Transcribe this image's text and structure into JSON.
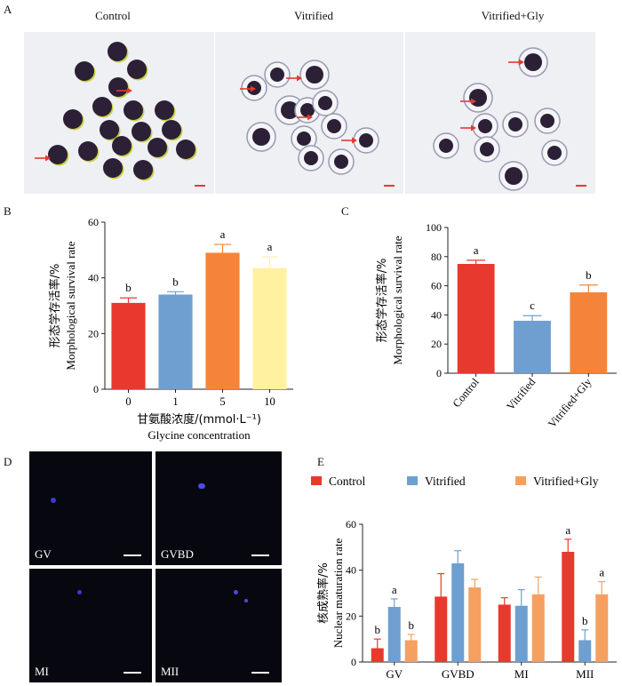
{
  "panels": {
    "A": {
      "letter": "A",
      "labels": [
        "Control",
        "Vitrified",
        "Vitrified+Gly"
      ],
      "colors": {
        "oocyte": "#2b2036",
        "rim": "#c8d23a",
        "bg": "#eef0f4",
        "arrow": "#e53a2f",
        "scale": "#e53a2f"
      }
    },
    "B": {
      "letter": "B"
    },
    "C": {
      "letter": "C"
    },
    "D": {
      "letter": "D",
      "labels": [
        "GV",
        "GVBD",
        "MI",
        "MII"
      ]
    },
    "E": {
      "letter": "E"
    }
  },
  "chart_data": [
    {
      "id": "B",
      "type": "bar",
      "categories": [
        "0",
        "1",
        "5",
        "10"
      ],
      "values": [
        31,
        34,
        49,
        43.5
      ],
      "errors": [
        1.8,
        1.0,
        3.0,
        4.0
      ],
      "sig": [
        "b",
        "b",
        "a",
        "a"
      ],
      "colors": [
        "#e8392e",
        "#6f9fd0",
        "#f5843a",
        "#fff1a0"
      ],
      "ylabel_cn": "形态学存活率/%",
      "ylabel_en": "Morphological survival rate",
      "xlabel_cn": "甘氨酸浓度/(mmol·L⁻¹)",
      "xlabel_en": "Glycine concentration",
      "ylim": [
        0,
        60
      ],
      "yticks": [
        0,
        20,
        40,
        60
      ]
    },
    {
      "id": "C",
      "type": "bar",
      "categories": [
        "Control",
        "Vitrified",
        "Vitrified+Gly"
      ],
      "values": [
        75,
        36,
        55.5
      ],
      "errors": [
        2.5,
        3.5,
        5.0
      ],
      "sig": [
        "a",
        "c",
        "b"
      ],
      "colors": [
        "#e8392e",
        "#6f9fd0",
        "#f5843a"
      ],
      "ylabel_cn": "形态学存活率/%",
      "ylabel_en": "Morphological survival rate",
      "ylim": [
        0,
        100
      ],
      "yticks": [
        0,
        20,
        40,
        60,
        80,
        100
      ]
    },
    {
      "id": "E",
      "type": "bar",
      "categories": [
        "GV",
        "GVBD",
        "MI",
        "MII"
      ],
      "series": [
        {
          "name": "Control",
          "color": "#e8392e",
          "values": [
            6,
            28.5,
            25,
            48
          ],
          "errors": [
            4,
            10,
            3,
            5.5
          ],
          "sig": [
            "b",
            "",
            "",
            "a"
          ]
        },
        {
          "name": "Vitrified",
          "color": "#6f9fd0",
          "values": [
            24,
            43,
            24.5,
            9.5
          ],
          "errors": [
            3.5,
            5.5,
            7,
            4.5
          ],
          "sig": [
            "a",
            "",
            "",
            "b"
          ]
        },
        {
          "name": "Vitrified+Gly",
          "color": "#f5a060",
          "values": [
            9.5,
            32.5,
            29.5,
            29.5
          ],
          "errors": [
            2.5,
            3.5,
            7.5,
            5.5
          ],
          "sig": [
            "b",
            "",
            "",
            "a"
          ]
        }
      ],
      "ylabel_cn": "核成熟率/%",
      "ylabel_en": "Nuclear maturation rate",
      "ylim": [
        0,
        60
      ],
      "yticks": [
        0,
        20,
        40,
        60
      ],
      "legend": "top"
    }
  ]
}
